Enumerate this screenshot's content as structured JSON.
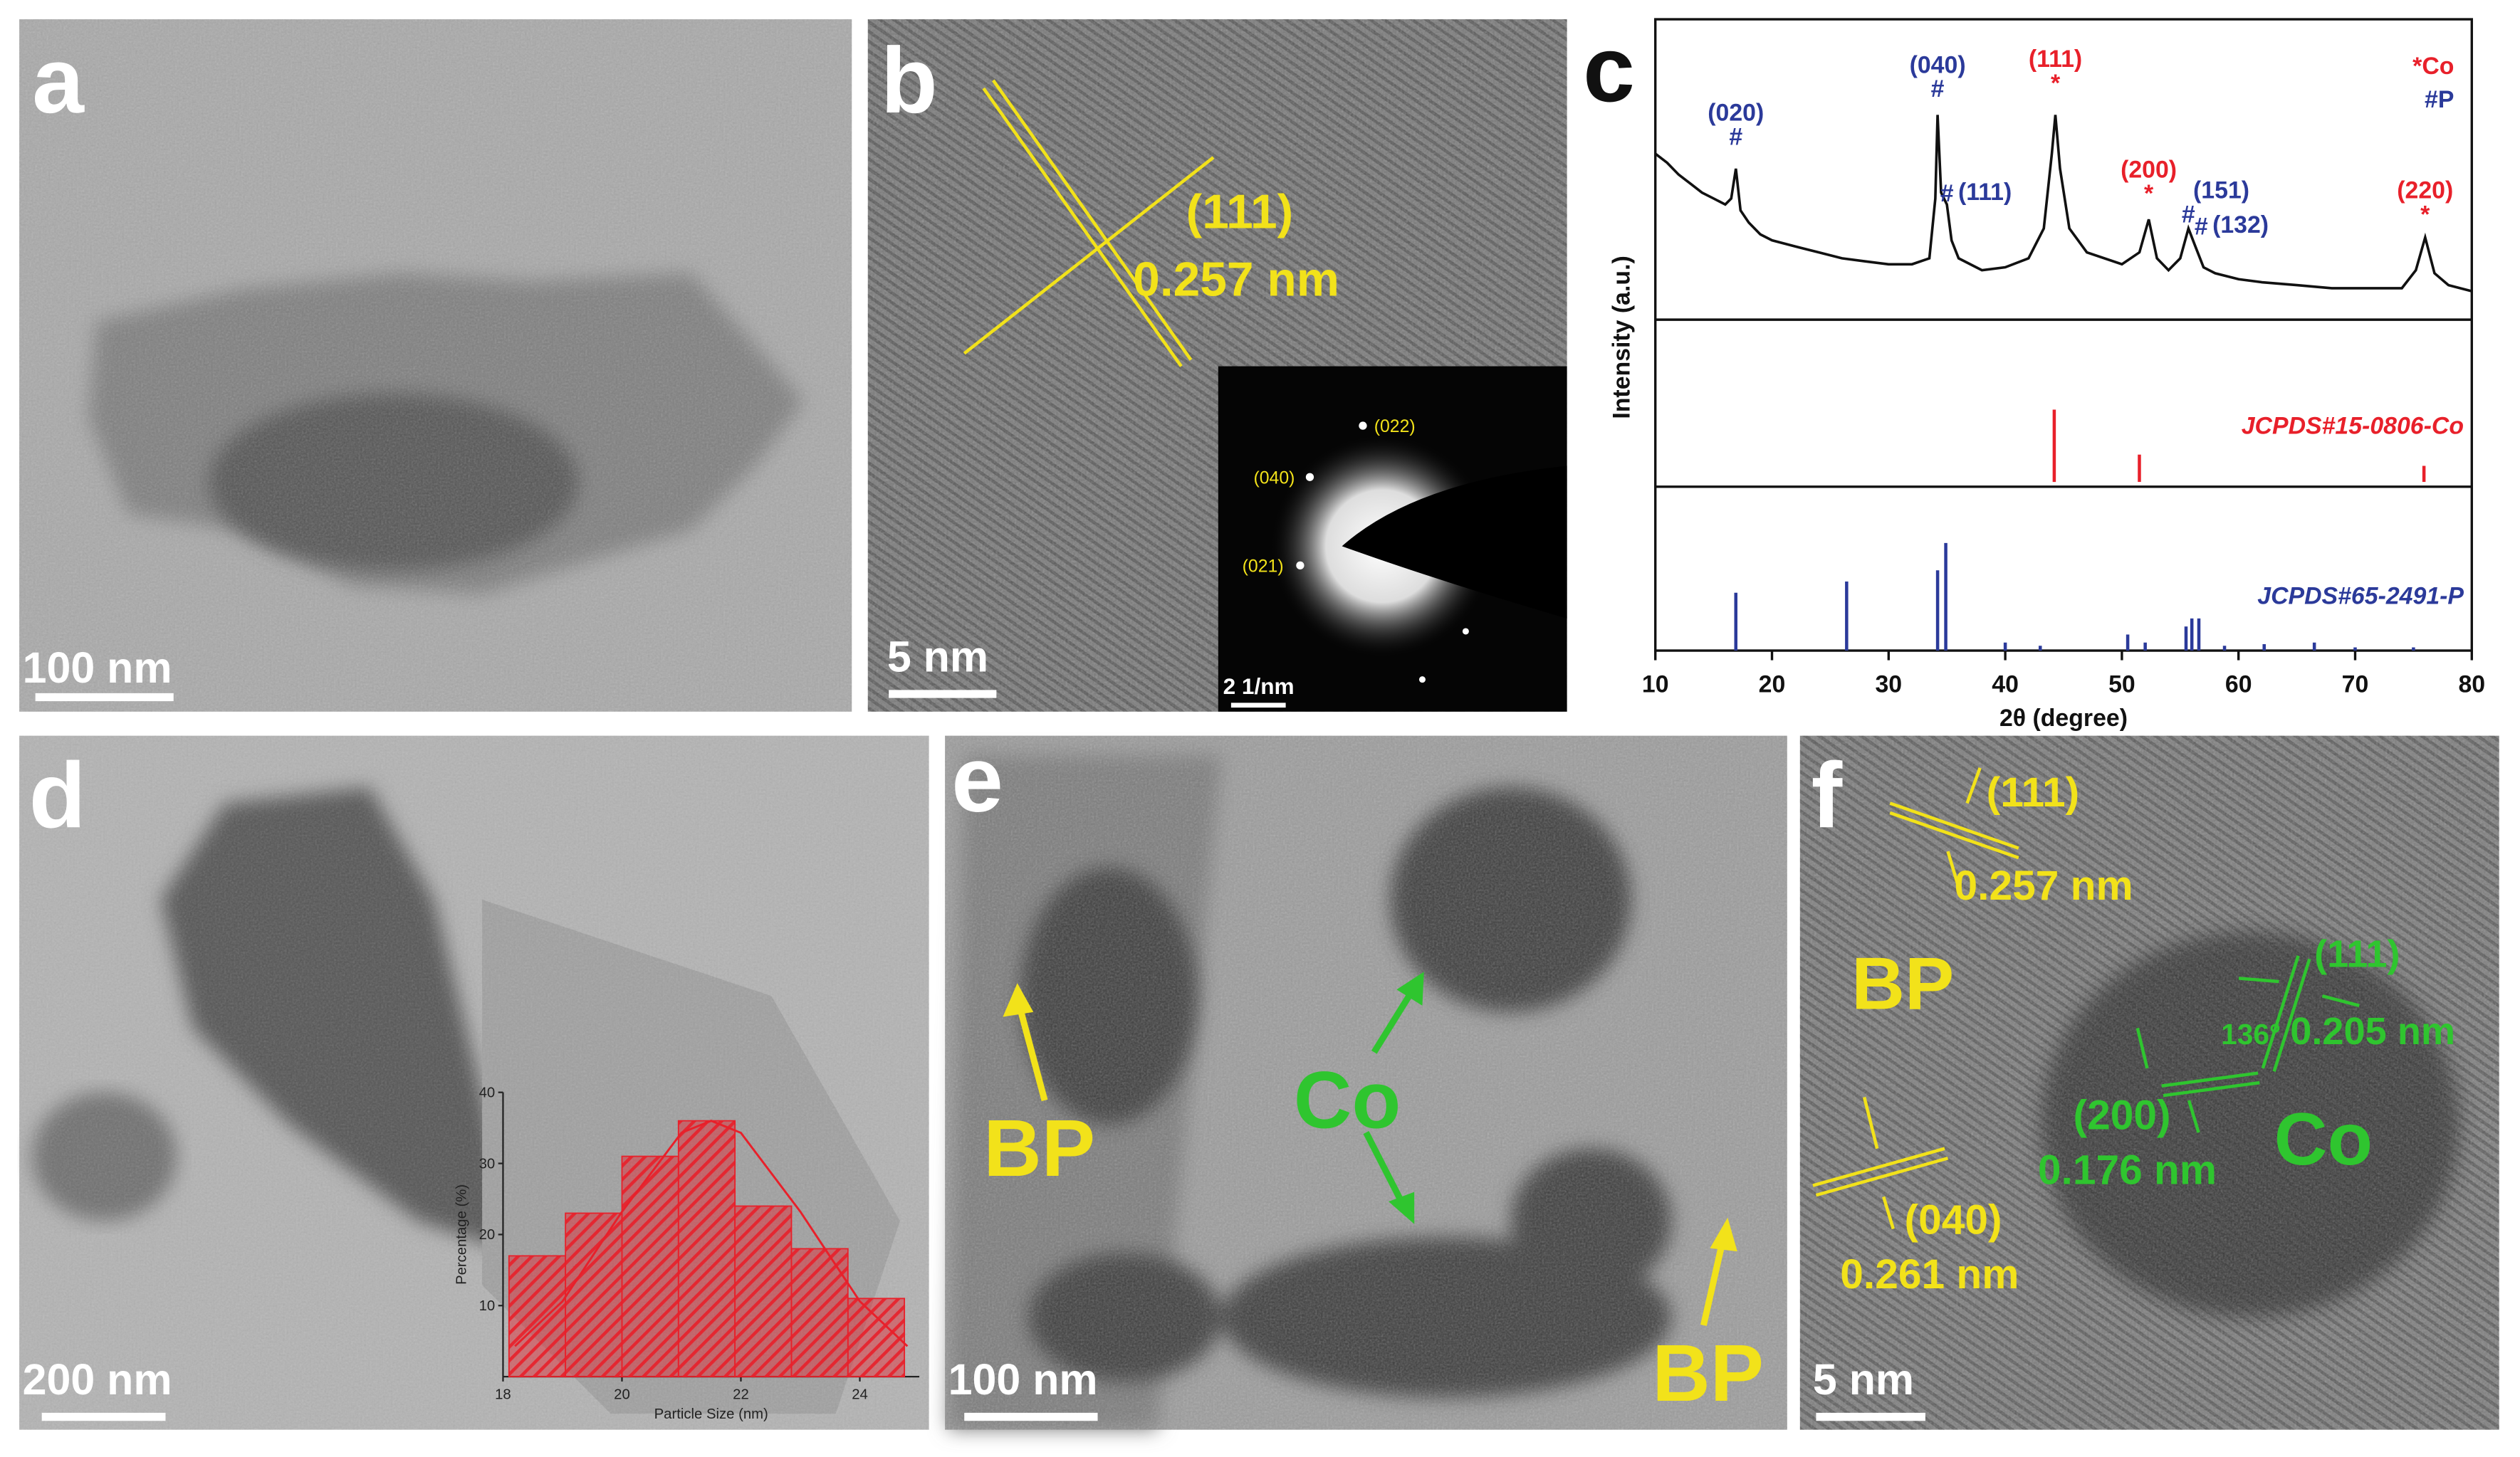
{
  "panels": [
    {
      "label": "a",
      "scale_bar": "100 nm"
    },
    {
      "label": "b",
      "scale_bar": "5 nm",
      "annotations": [
        "(111)",
        "0.257 nm"
      ],
      "inset_scale_bar": "2 1/nm",
      "inset_spots": [
        "(022)",
        "(040)",
        "(021)"
      ]
    },
    {
      "label": "c"
    },
    {
      "label": "d",
      "scale_bar": "200 nm"
    },
    {
      "label": "e",
      "scale_bar": "100 nm",
      "annotations": [
        "BP",
        "Co",
        "BP"
      ]
    },
    {
      "label": "f",
      "scale_bar": "5 nm",
      "annotations": [
        "(111)",
        "0.257 nm",
        "BP",
        "(111)",
        "0.205 nm",
        "136°",
        "(200)",
        "0.176 nm",
        "Co",
        "(040)",
        "0.261 nm"
      ]
    }
  ],
  "chart_data": [
    {
      "type": "line",
      "xlabel": "2θ (degree)",
      "ylabel": "Intensity (a.u.)",
      "xlim": [
        10,
        80
      ],
      "xticks": [
        10,
        20,
        30,
        40,
        50,
        60,
        70,
        80
      ],
      "ylim": [
        0,
        100
      ],
      "color": "#111111",
      "x": [
        10,
        11,
        12,
        13,
        14,
        15,
        16,
        16.5,
        16.9,
        17.3,
        18,
        19,
        20,
        22,
        24,
        26,
        28,
        30,
        32,
        33.5,
        34.0,
        34.2,
        34.5,
        35.0,
        35.4,
        36,
        38,
        40,
        42,
        43.3,
        44.0,
        44.3,
        44.7,
        45.5,
        47,
        50,
        51.5,
        52.3,
        53,
        54,
        55,
        55.7,
        56.3,
        57,
        58,
        60,
        62,
        65,
        68,
        70,
        72,
        74,
        75.2,
        76.0,
        76.8,
        78,
        80
      ],
      "values": [
        55,
        52,
        48,
        45,
        42,
        40,
        38,
        40,
        50,
        36,
        32,
        28,
        26,
        24,
        22,
        20,
        19,
        18,
        18,
        20,
        40,
        68,
        42,
        38,
        26,
        20,
        16,
        17,
        20,
        30,
        55,
        68,
        50,
        30,
        22,
        18,
        22,
        33,
        20,
        16,
        20,
        30,
        24,
        17,
        15,
        13,
        12,
        11,
        10,
        10,
        10,
        10,
        16,
        27,
        15,
        11,
        9
      ],
      "peak_labels": [
        {
          "label": "(020)",
          "marker": "#",
          "x": 16.9,
          "y": 58,
          "color": "#2b3a9a"
        },
        {
          "label": "(040)",
          "marker": "#",
          "x": 34.2,
          "y": 74,
          "color": "#2b3a9a"
        },
        {
          "label": "(111)",
          "marker": "*",
          "x": 44.3,
          "y": 76,
          "color": "#e8202a"
        },
        {
          "label": "(111)",
          "marker": "#",
          "x": 35.0,
          "y": 39,
          "color": "#2b3a9a"
        },
        {
          "label": "(200)",
          "marker": "*",
          "x": 52.3,
          "y": 39,
          "color": "#e8202a"
        },
        {
          "label": "(151)",
          "marker": "#",
          "x": 55.7,
          "y": 32,
          "color": "#2b3a9a"
        },
        {
          "label": "(132)",
          "marker": "#",
          "x": 56.8,
          "y": 28,
          "color": "#2b3a9a"
        },
        {
          "label": "(220)",
          "marker": "*",
          "x": 76.0,
          "y": 32,
          "color": "#e8202a"
        }
      ],
      "legend": [
        {
          "marker": "*",
          "name": "Co",
          "color": "#e8202a"
        },
        {
          "marker": "#",
          "name": "P",
          "color": "#2b3a9a"
        }
      ],
      "references": [
        {
          "name": "JCPDS#15-0806-Co",
          "color": "#e8202a",
          "positions": [
            44.2,
            51.5,
            75.9
          ],
          "heights": [
            45,
            17,
            10
          ]
        },
        {
          "name": "JCPDS#65-2491-P",
          "color": "#2b3a9a",
          "positions": [
            16.9,
            26.4,
            34.2,
            34.9,
            40.0,
            43.0,
            50.5,
            52.0,
            55.5,
            56.0,
            56.6,
            58.8,
            62.2,
            66.5,
            70.0,
            75.0
          ],
          "heights": [
            36,
            43,
            50,
            67,
            5,
            3,
            10,
            5,
            15,
            20,
            20,
            3,
            4,
            5,
            2,
            2
          ]
        }
      ]
    },
    {
      "type": "histogram",
      "xlabel": "Particle Size (nm)",
      "ylabel": "Percentage (%)",
      "bins": [
        18.1,
        19.05,
        20.0,
        20.95,
        21.9,
        22.85,
        23.8,
        24.75
      ],
      "values": [
        17,
        23,
        31,
        36,
        24,
        18,
        11
      ],
      "color": "#e8202a",
      "xlim": [
        18,
        25
      ],
      "xticks": [
        18,
        20,
        22,
        24
      ],
      "ylim": [
        0,
        40
      ],
      "yticks": [
        10,
        20,
        30,
        40
      ],
      "fit": {
        "x": [
          18.2,
          19,
          20,
          21,
          21.5,
          22,
          23,
          24,
          24.8
        ],
        "values": [
          4.3,
          10.6,
          23.2,
          34.3,
          36,
          34.3,
          23.2,
          10.6,
          4.3
        ],
        "color": "#e8202a"
      }
    }
  ]
}
